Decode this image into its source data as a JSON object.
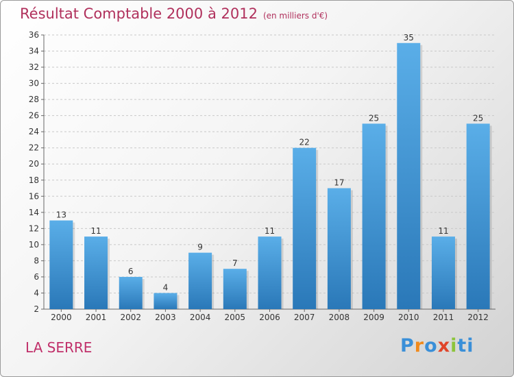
{
  "chart_data": {
    "type": "bar",
    "title": "Résultat Comptable 2000 à 2012",
    "subtitle": "(en milliers d'€)",
    "categories": [
      "2000",
      "2001",
      "2002",
      "2003",
      "2004",
      "2005",
      "2006",
      "2007",
      "2008",
      "2009",
      "2010",
      "2011",
      "2012"
    ],
    "values": [
      13,
      11,
      6,
      4,
      9,
      7,
      11,
      22,
      17,
      25,
      35,
      11,
      25
    ],
    "ylim": [
      2,
      36
    ],
    "yticks": [
      2,
      4,
      6,
      8,
      10,
      12,
      14,
      16,
      18,
      20,
      22,
      24,
      26,
      28,
      30,
      32,
      34,
      36
    ],
    "xlabel": "",
    "ylabel": "",
    "grid": true,
    "bar_color": "#3d95d6",
    "title_color": "#b0305c"
  },
  "footer": {
    "commune": "LA SERRE",
    "logo": [
      "P",
      "r",
      "o",
      "x",
      "i",
      "ti"
    ]
  }
}
